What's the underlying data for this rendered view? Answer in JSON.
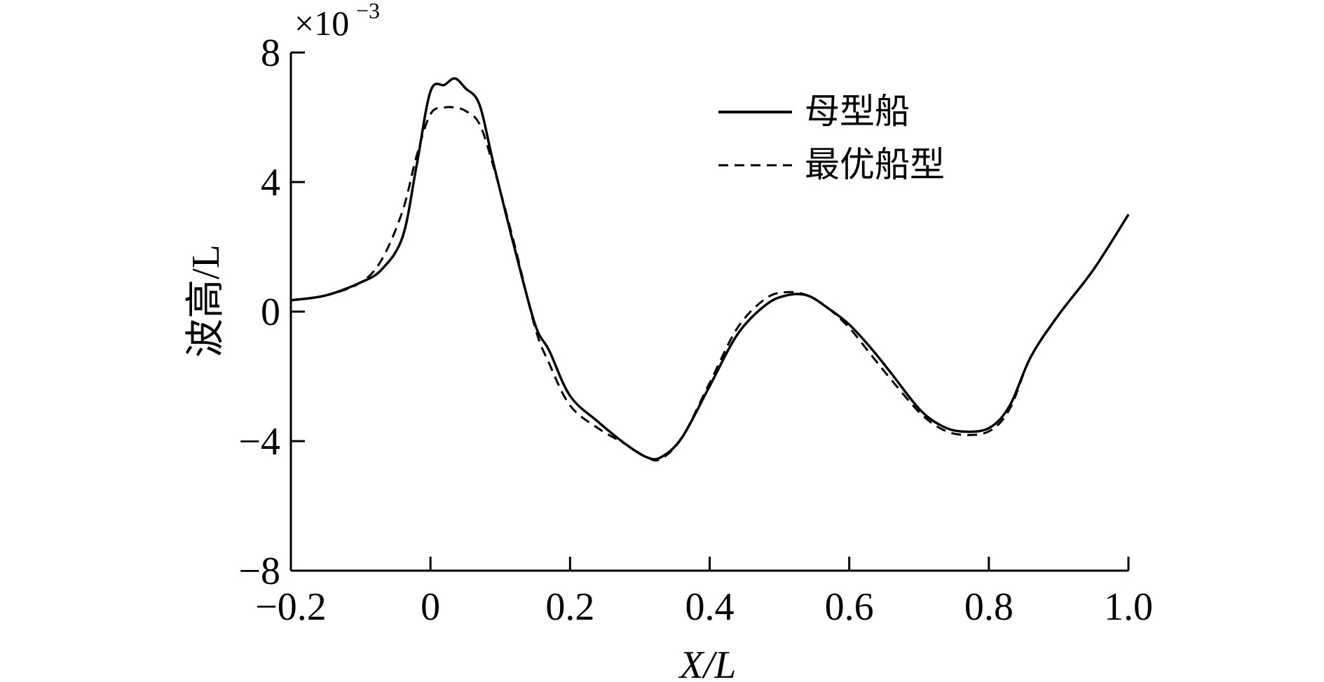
{
  "chart_data": {
    "type": "line",
    "xlabel": "X/L",
    "ylabel": "波高/L",
    "y_multiplier": "×10",
    "y_multiplier_exp": "−3",
    "xlim": [
      -0.2,
      1.0
    ],
    "ylim": [
      -8,
      8
    ],
    "x_ticks": [
      "−0.2",
      "0",
      "0.2",
      "0.4",
      "0.6",
      "0.8",
      "1.0"
    ],
    "y_ticks": [
      "8",
      "4",
      "0",
      "−4",
      "−8"
    ],
    "x_tick_values": [
      -0.2,
      0,
      0.2,
      0.4,
      0.6,
      0.8,
      1.0
    ],
    "y_tick_values": [
      8,
      4,
      0,
      -4,
      -8
    ],
    "grid": false,
    "legend_position": "top-right",
    "series": [
      {
        "name": "母型船",
        "style": "solid",
        "color": "#000000",
        "x": [
          -0.2,
          -0.15,
          -0.1,
          -0.07,
          -0.04,
          -0.02,
          0.0,
          0.02,
          0.035,
          0.05,
          0.07,
          0.09,
          0.12,
          0.15,
          0.17,
          0.2,
          0.24,
          0.28,
          0.31,
          0.33,
          0.36,
          0.4,
          0.44,
          0.48,
          0.51,
          0.54,
          0.57,
          0.6,
          0.63,
          0.66,
          0.7,
          0.73,
          0.76,
          0.8,
          0.83,
          0.86,
          0.9,
          0.95,
          1.0
        ],
        "y": [
          0.35,
          0.5,
          0.9,
          1.3,
          2.3,
          4.5,
          6.8,
          7.0,
          7.2,
          6.9,
          6.4,
          4.6,
          2.0,
          -0.4,
          -1.2,
          -2.6,
          -3.4,
          -4.1,
          -4.5,
          -4.5,
          -3.9,
          -2.3,
          -0.7,
          0.2,
          0.5,
          0.5,
          0.1,
          -0.4,
          -1.1,
          -1.9,
          -3.0,
          -3.5,
          -3.7,
          -3.6,
          -2.9,
          -1.4,
          -0.1,
          1.3,
          3.0
        ]
      },
      {
        "name": "最优船型",
        "style": "dashed",
        "color": "#000000",
        "x": [
          -0.2,
          -0.15,
          -0.1,
          -0.07,
          -0.04,
          -0.02,
          0.0,
          0.02,
          0.035,
          0.05,
          0.07,
          0.09,
          0.12,
          0.15,
          0.17,
          0.2,
          0.24,
          0.28,
          0.31,
          0.33,
          0.36,
          0.4,
          0.44,
          0.48,
          0.51,
          0.54,
          0.57,
          0.6,
          0.63,
          0.66,
          0.7,
          0.73,
          0.76,
          0.8,
          0.83,
          0.86,
          0.9,
          0.95,
          1.0
        ],
        "y": [
          0.35,
          0.5,
          0.9,
          1.6,
          3.1,
          4.8,
          6.1,
          6.3,
          6.3,
          6.2,
          5.8,
          4.5,
          2.1,
          -0.5,
          -1.6,
          -2.9,
          -3.6,
          -4.1,
          -4.5,
          -4.55,
          -3.9,
          -2.2,
          -0.5,
          0.4,
          0.6,
          0.5,
          0.1,
          -0.5,
          -1.3,
          -2.1,
          -3.1,
          -3.6,
          -3.8,
          -3.7,
          -3.0,
          -1.4,
          -0.1,
          1.3,
          3.0
        ]
      }
    ]
  }
}
